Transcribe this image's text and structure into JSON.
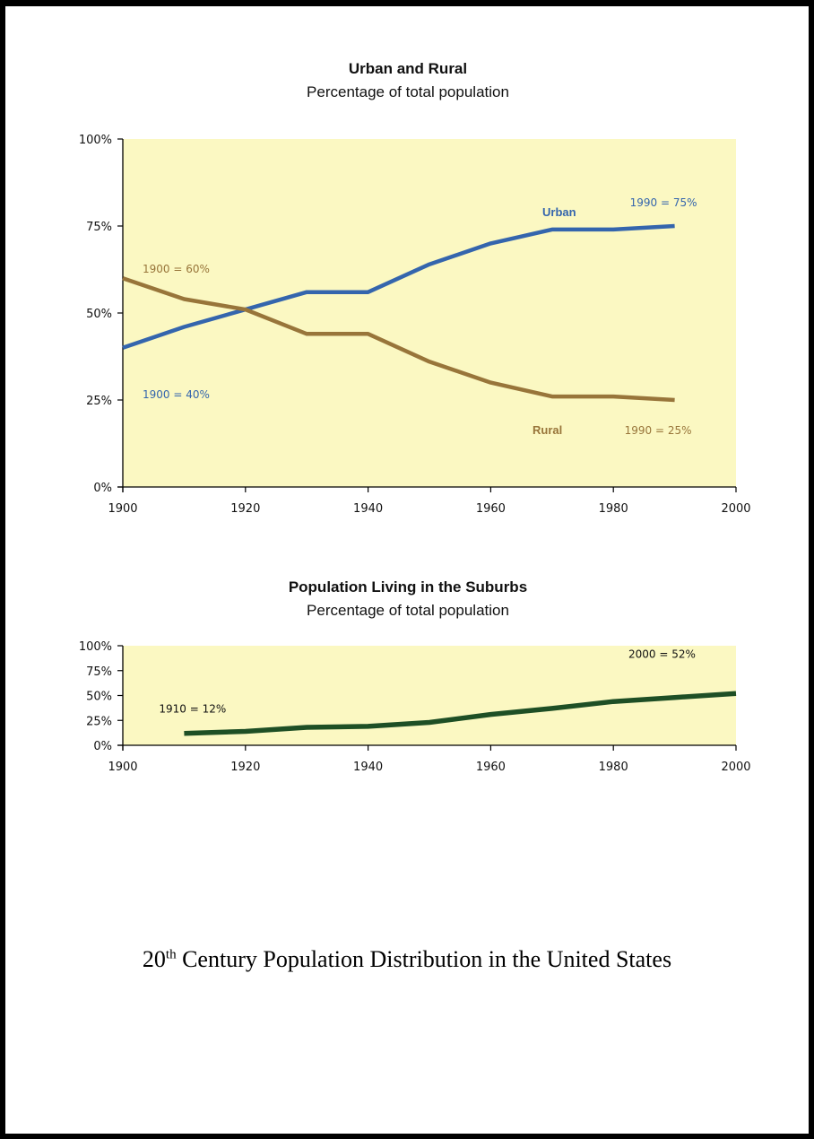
{
  "colors": {
    "plot_bg": "#fbf8c2",
    "urban": "#3465ad",
    "rural": "#98753a",
    "suburbs": "#1e4f25",
    "axis": "#000000"
  },
  "chart_data": [
    {
      "type": "line",
      "title": "Urban and Rural",
      "subtitle": "Percentage of total population",
      "xlim": [
        1900,
        2000
      ],
      "ylim": [
        0,
        100
      ],
      "x_ticks": [
        "1900",
        "1920",
        "1940",
        "1960",
        "1980",
        "2000"
      ],
      "y_ticks": [
        "100%",
        "75%",
        "50%",
        "25%",
        "0%"
      ],
      "grid": false,
      "series": [
        {
          "name": "Urban",
          "x": [
            1900,
            1910,
            1920,
            1930,
            1940,
            1950,
            1960,
            1970,
            1980,
            1990
          ],
          "values": [
            40,
            46,
            51,
            56,
            56,
            64,
            70,
            74,
            74,
            75
          ]
        },
        {
          "name": "Rural",
          "x": [
            1900,
            1910,
            1920,
            1930,
            1940,
            1950,
            1960,
            1970,
            1980,
            1990
          ],
          "values": [
            60,
            54,
            51,
            44,
            44,
            36,
            30,
            26,
            26,
            25
          ]
        }
      ],
      "annotations": [
        "1900 = 60%",
        "1900 = 40%",
        "1990 = 75%",
        "1990 = 25%"
      ]
    },
    {
      "type": "line",
      "title": "Population Living in the Suburbs",
      "subtitle": "Percentage of total population",
      "xlim": [
        1900,
        2000
      ],
      "ylim": [
        0,
        100
      ],
      "x_ticks": [
        "1900",
        "1920",
        "1940",
        "1960",
        "1980",
        "2000"
      ],
      "y_ticks": [
        "100%",
        "75%",
        "50%",
        "25%",
        "0%"
      ],
      "grid": false,
      "series": [
        {
          "x": [
            1910,
            1920,
            1930,
            1940,
            1950,
            1960,
            1970,
            1980,
            1990,
            2000
          ],
          "values": [
            12,
            14,
            18,
            19,
            23,
            31,
            37,
            44,
            48,
            52
          ]
        }
      ],
      "annotations": [
        "1910 = 12%",
        "2000 = 52%"
      ]
    }
  ],
  "caption": {
    "prefix": "20",
    "superscript": "th",
    "text": " Century Population Distribution in the United States"
  }
}
